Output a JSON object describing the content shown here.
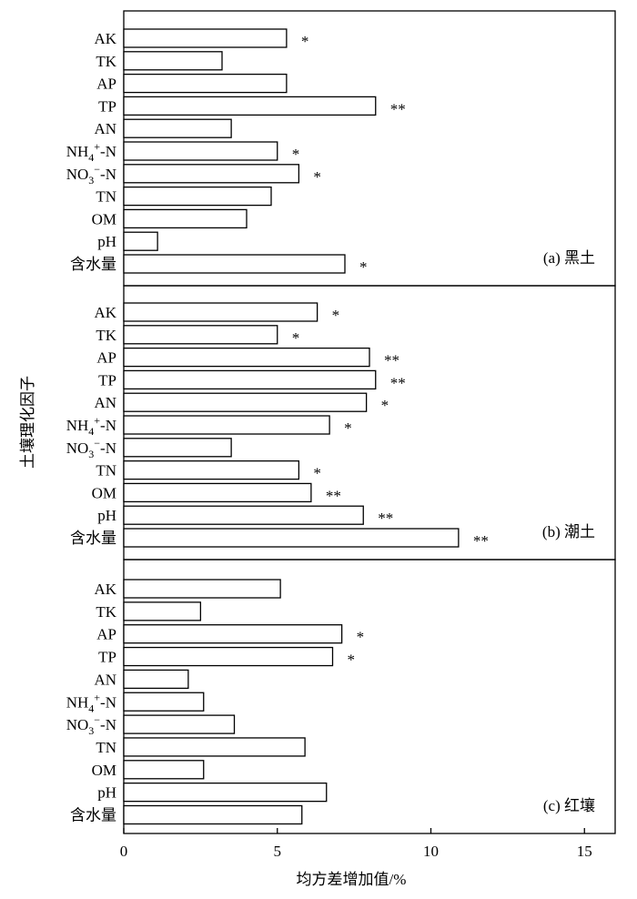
{
  "chart_data": {
    "type": "bar",
    "orientation": "horizontal",
    "xlabel": "均方差增加值/%",
    "ylabel": "土壤理化因子",
    "xlim": [
      0,
      16
    ],
    "xticks": [
      "0",
      "5",
      "10",
      "15"
    ],
    "categories": [
      "AK",
      "TK",
      "AP",
      "TP",
      "AN",
      "NH4+-N",
      "NO3−-N",
      "TN",
      "OM",
      "pH",
      "含水量"
    ],
    "panels": [
      {
        "label": "(a) 黑土",
        "values": [
          5.3,
          3.2,
          5.3,
          8.2,
          3.5,
          5.0,
          5.7,
          4.8,
          4.0,
          1.1,
          7.2
        ],
        "significance": [
          "*",
          "",
          "",
          "**",
          "",
          "*",
          "*",
          "",
          "",
          "",
          "*"
        ]
      },
      {
        "label": "(b) 潮土",
        "values": [
          6.3,
          5.0,
          8.0,
          8.2,
          7.9,
          6.7,
          3.5,
          5.7,
          6.1,
          7.8,
          10.9
        ],
        "significance": [
          "*",
          "*",
          "**",
          "**",
          "*",
          "*",
          "",
          "*",
          "**",
          "**",
          "**"
        ]
      },
      {
        "label": "(c) 红壤",
        "values": [
          5.1,
          2.5,
          7.1,
          6.8,
          2.1,
          2.6,
          3.6,
          5.9,
          2.6,
          6.6,
          5.8
        ],
        "significance": [
          "",
          "",
          "*",
          "*",
          "",
          "",
          "",
          "",
          "",
          "",
          ""
        ]
      }
    ]
  }
}
